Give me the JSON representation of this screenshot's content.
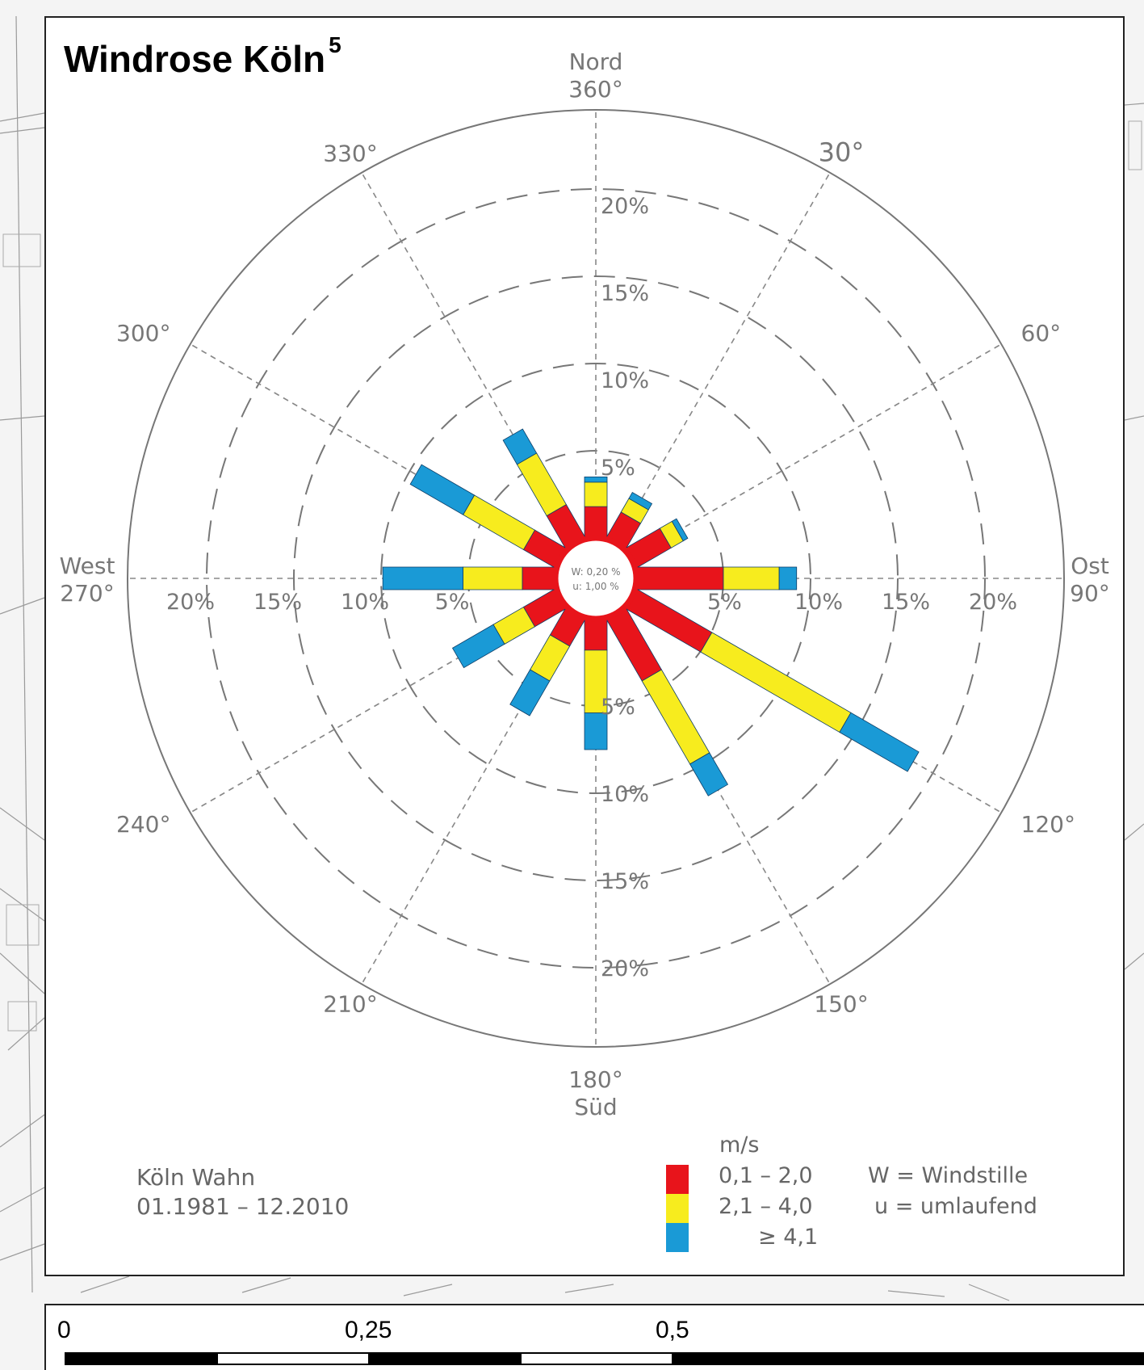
{
  "title": "Windrose Köln",
  "title_sup": "5",
  "station": {
    "name": "Köln Wahn",
    "period": "01.1981 – 12.2010"
  },
  "legend": {
    "unit": "m/s",
    "classes": [
      {
        "label": "0,1  –  2,0",
        "color": "#e8141b"
      },
      {
        "label": "2,1  –  4,0",
        "color": "#f7ec1e"
      },
      {
        "label": "≥  4,1",
        "color": "#1a9ad6"
      }
    ],
    "notes": [
      "W = Windstille",
      "u = umlaufend"
    ]
  },
  "scale_bar": {
    "labels": [
      "0",
      "0,25",
      "0,5"
    ]
  },
  "chart_data": {
    "type": "windrose",
    "center_text": [
      "W: 0,20 %",
      "u: 1,00 %"
    ],
    "radial_max": 20,
    "radial_ticks": [
      5,
      10,
      15,
      20
    ],
    "tick_labels": [
      "5%",
      "10%",
      "15%",
      "20%"
    ],
    "angle_labels": [
      {
        "angle": 0,
        "lines": [
          "Nord",
          "360°"
        ]
      },
      {
        "angle": 30,
        "lines": [
          "30°"
        ]
      },
      {
        "angle": 60,
        "lines": [
          "60°"
        ]
      },
      {
        "angle": 90,
        "lines": [
          "Ost",
          "90°"
        ]
      },
      {
        "angle": 120,
        "lines": [
          "120°"
        ]
      },
      {
        "angle": 150,
        "lines": [
          "150°"
        ]
      },
      {
        "angle": 180,
        "lines": [
          "180°",
          "Süd"
        ]
      },
      {
        "angle": 210,
        "lines": [
          "210°"
        ]
      },
      {
        "angle": 240,
        "lines": [
          "240°"
        ]
      },
      {
        "angle": 270,
        "lines": [
          "West",
          "270°"
        ]
      },
      {
        "angle": 300,
        "lines": [
          "300°"
        ]
      },
      {
        "angle": 330,
        "lines": [
          "330°"
        ]
      }
    ],
    "series_names": [
      "0,1 – 2,0",
      "2,1 – 4,0",
      "≥ 4,1"
    ],
    "directions": [
      {
        "angle": 0,
        "values": [
          1.8,
          1.4,
          0.3
        ]
      },
      {
        "angle": 30,
        "values": [
          1.7,
          0.9,
          0.4
        ]
      },
      {
        "angle": 60,
        "values": [
          2.3,
          0.8,
          0.3
        ]
      },
      {
        "angle": 90,
        "values": [
          5.0,
          3.2,
          1.0
        ]
      },
      {
        "angle": 120,
        "values": [
          5.0,
          9.2,
          4.5
        ]
      },
      {
        "angle": 150,
        "values": [
          4.1,
          5.5,
          2.1
        ]
      },
      {
        "angle": 180,
        "values": [
          1.8,
          3.6,
          2.1
        ]
      },
      {
        "angle": 210,
        "values": [
          1.8,
          2.3,
          2.3
        ]
      },
      {
        "angle": 240,
        "values": [
          2.1,
          2.0,
          2.7
        ]
      },
      {
        "angle": 270,
        "values": [
          1.9,
          3.4,
          4.6
        ]
      },
      {
        "angle": 300,
        "values": [
          2.1,
          4.0,
          3.5
        ]
      },
      {
        "angle": 330,
        "values": [
          2.2,
          3.4,
          1.6
        ]
      }
    ]
  }
}
